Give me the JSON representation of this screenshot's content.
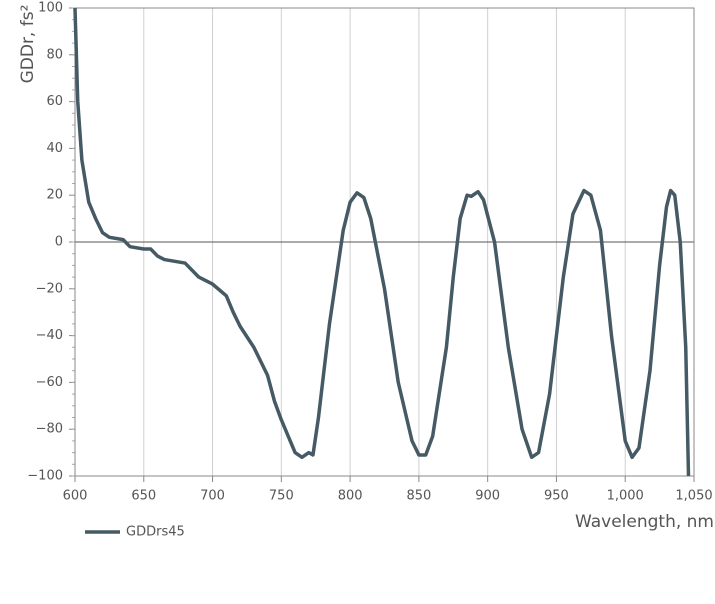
{
  "chart_data": {
    "type": "line",
    "x_label": "Wavelength, nm",
    "y_label": "GDDr, fs²",
    "xlim": [
      600,
      1050
    ],
    "ylim": [
      -100,
      100
    ],
    "xticks": [
      600,
      650,
      700,
      750,
      800,
      850,
      900,
      950,
      {
        "value": 1000,
        "label": "1,000"
      },
      {
        "value": 1050,
        "label": "1,050"
      }
    ],
    "yticks": [
      {
        "value": -100,
        "label": "−100"
      },
      {
        "value": -80,
        "label": "−80"
      },
      {
        "value": -60,
        "label": "−60"
      },
      {
        "value": -40,
        "label": "−40"
      },
      {
        "value": -20,
        "label": "−20"
      },
      0,
      20,
      40,
      60,
      80,
      100
    ],
    "grid": "x",
    "x": [
      600,
      602,
      605,
      610,
      615,
      620,
      625,
      635,
      640,
      650,
      655,
      660,
      665,
      680,
      690,
      700,
      710,
      715,
      720,
      730,
      740,
      745,
      750,
      755,
      760,
      765,
      770,
      773,
      777,
      785,
      790,
      795,
      800,
      805,
      810,
      815,
      825,
      835,
      845,
      850,
      855,
      860,
      870,
      875,
      880,
      885,
      888,
      893,
      897,
      905,
      915,
      925,
      932,
      937,
      945,
      955,
      962,
      970,
      975,
      982,
      990,
      1000,
      1005,
      1010,
      1018,
      1025,
      1030,
      1033,
      1036,
      1040,
      1044,
      1046
    ],
    "series": [
      {
        "name": "GDDrs45",
        "color": "#455a64",
        "values": [
          100,
          60,
          35,
          17,
          10,
          4,
          2,
          1,
          -2,
          -3,
          -3,
          -6,
          -7.5,
          -9,
          -15,
          -18,
          -23,
          -30,
          -36,
          -45,
          -57,
          -68,
          -76,
          -83,
          -90,
          -92,
          -90,
          -91,
          -75,
          -35,
          -15,
          5,
          17,
          21,
          19,
          10,
          -20,
          -60,
          -85,
          -91,
          -91,
          -83,
          -45,
          -15,
          10,
          20,
          19.5,
          21.5,
          18,
          0,
          -45,
          -80,
          -92,
          -90,
          -65,
          -15,
          12,
          22,
          20,
          5,
          -40,
          -85,
          -92,
          -88,
          -55,
          -10,
          15,
          22,
          20,
          0,
          -45,
          -100
        ]
      }
    ]
  }
}
